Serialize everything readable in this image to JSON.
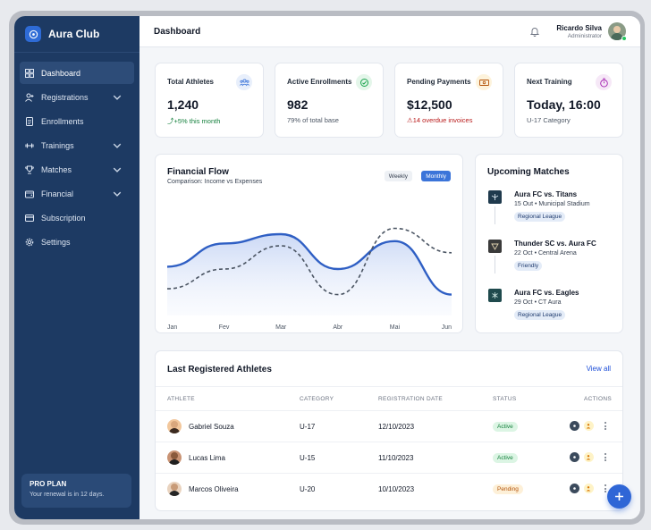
{
  "brand": {
    "name": "Aura Club"
  },
  "sidebar": {
    "items": [
      {
        "label": "Dashboard",
        "icon": "grid-icon",
        "active": true,
        "has_children": false
      },
      {
        "label": "Registrations",
        "icon": "user-plus-icon",
        "active": false,
        "has_children": true
      },
      {
        "label": "Enrollments",
        "icon": "file-icon",
        "active": false,
        "has_children": false
      },
      {
        "label": "Trainings",
        "icon": "dumbbell-icon",
        "active": false,
        "has_children": true
      },
      {
        "label": "Matches",
        "icon": "trophy-icon",
        "active": false,
        "has_children": true
      },
      {
        "label": "Financial",
        "icon": "wallet-icon",
        "active": false,
        "has_children": true
      },
      {
        "label": "Subscription",
        "icon": "card-icon",
        "active": false,
        "has_children": false
      },
      {
        "label": "Settings",
        "icon": "gear-icon",
        "active": false,
        "has_children": false
      }
    ],
    "plan": {
      "title": "PRO PLAN",
      "subtitle": "Your renewal is in 12 days."
    }
  },
  "header": {
    "title": "Dashboard",
    "user": {
      "name": "Ricardo Silva",
      "role": "Administrator"
    }
  },
  "stats": [
    {
      "label": "Total Athletes",
      "value": "1,240",
      "sub": "+5% this month",
      "icon": "team-icon"
    },
    {
      "label": "Active Enrollments",
      "value": "982",
      "sub": "79% of total base",
      "icon": "check-circle-icon"
    },
    {
      "label": "Pending Payments",
      "value": "$12,500",
      "sub": "14 overdue invoices",
      "icon": "banknote-icon"
    },
    {
      "label": "Next Training",
      "value": "Today, 16:00",
      "sub": "U-17 Category",
      "icon": "stopwatch-icon"
    }
  ],
  "financial": {
    "title": "Financial Flow",
    "subtitle": "Comparison: Income vs Expenses",
    "toggle": {
      "weekly": "Weekly",
      "monthly": "Monthly",
      "selected": "Monthly"
    }
  },
  "chart_data": {
    "type": "area",
    "categories": [
      "Jan",
      "Fev",
      "Mar",
      "Abr",
      "Mai",
      "Jun"
    ],
    "series": [
      {
        "values": [
          42,
          62,
          70,
          40,
          64,
          18
        ],
        "style": "solid",
        "color": "#2f5fc4"
      },
      {
        "values": [
          23,
          40,
          60,
          18,
          75,
          54
        ],
        "style": "dashed",
        "color": "#4b5563"
      }
    ],
    "ylim": [
      0,
      100
    ],
    "grid": false,
    "axis_note": "values are relative heights; y-axis has no printed ticks"
  },
  "upcoming": {
    "title": "Upcoming Matches",
    "matches": [
      {
        "name": "Aura FC vs. Titans",
        "info": "15 Out • Municipal Stadium",
        "badge": "Regional League",
        "logo_color": "#1f3a4d"
      },
      {
        "name": "Thunder SC vs. Aura FC",
        "info": "22 Oct • Central Arena",
        "badge": "Friendly",
        "logo_color": "#3a3a3a"
      },
      {
        "name": "Aura FC vs. Eagles",
        "info": "29 Oct • CT Aura",
        "badge": "Regional League",
        "logo_color": "#1f4a4d"
      }
    ]
  },
  "athletes": {
    "title": "Last Registered Athletes",
    "view_all": "View all",
    "columns": [
      "ATHLETE",
      "CATEGORY",
      "REGISTRATION DATE",
      "STATUS",
      "ACTIONS"
    ],
    "rows": [
      {
        "name": "Gabriel Souza",
        "category": "U-17",
        "date": "12/10/2023",
        "status": "Active"
      },
      {
        "name": "Lucas Lima",
        "category": "U-15",
        "date": "11/10/2023",
        "status": "Active"
      },
      {
        "name": "Marcos Oliveira",
        "category": "U-20",
        "date": "10/10/2023",
        "status": "Pending"
      }
    ]
  }
}
